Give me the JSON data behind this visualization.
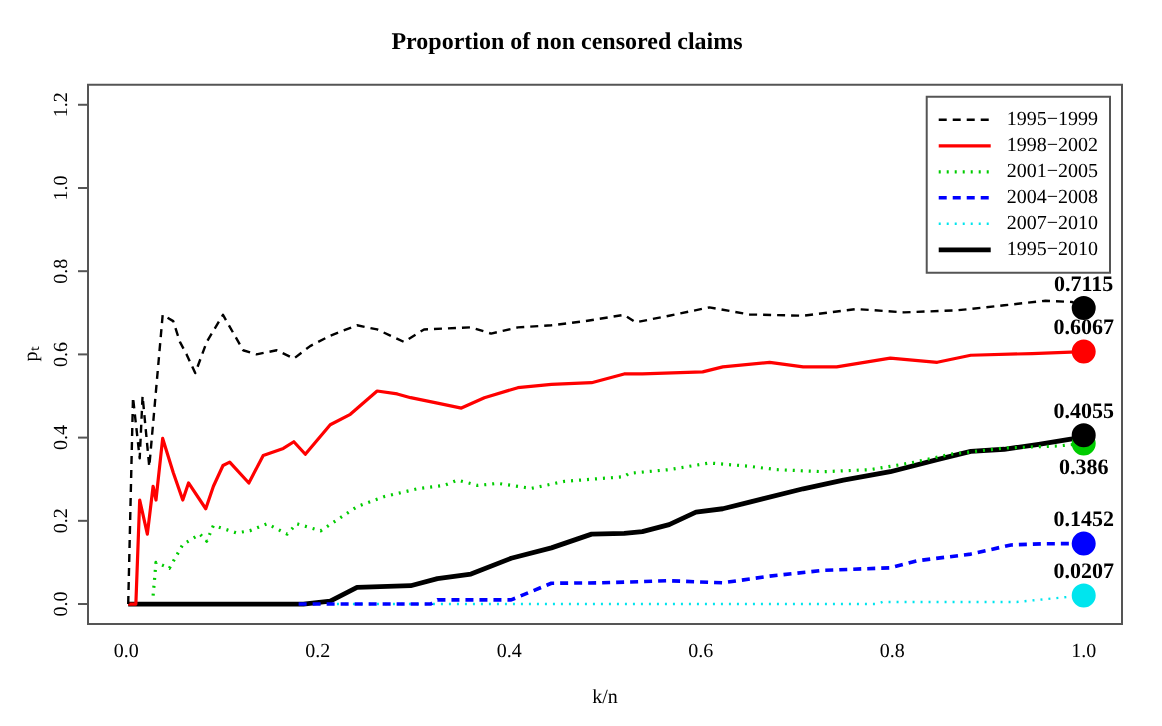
{
  "chart_data": {
    "type": "line",
    "title": "Proportion of non censored claims",
    "xlabel": "k/n",
    "ylabel": "pₜ",
    "xlim": [
      -0.04,
      1.04
    ],
    "ylim": [
      -0.048,
      1.248
    ],
    "xticks": [
      {
        "value": 0,
        "label": "0.0"
      },
      {
        "value": 0.2,
        "label": "0.2"
      },
      {
        "value": 0.4,
        "label": "0.4"
      },
      {
        "value": 0.6,
        "label": "0.6"
      },
      {
        "value": 0.8,
        "label": "0.8"
      },
      {
        "value": 1,
        "label": "1.0"
      }
    ],
    "yticks": [
      {
        "value": 0,
        "label": "0.0"
      },
      {
        "value": 0.2,
        "label": "0.2"
      },
      {
        "value": 0.4,
        "label": "0.4"
      },
      {
        "value": 0.6,
        "label": "0.6"
      },
      {
        "value": 0.8,
        "label": "0.8"
      },
      {
        "value": 1,
        "label": "1.0"
      },
      {
        "value": 1.2,
        "label": "1.2"
      }
    ],
    "grid": false,
    "legend": "top right",
    "marker": "none",
    "series": [
      {
        "name": "1995−1999",
        "color": "#000000",
        "line_style": "dashed",
        "x": [
          0.002,
          0.007,
          0.014,
          0.017,
          0.024,
          0.038,
          0.049,
          0.056,
          0.063,
          0.072,
          0.084,
          0.101,
          0.122,
          0.136,
          0.157,
          0.175,
          0.192,
          0.213,
          0.241,
          0.262,
          0.29,
          0.311,
          0.36,
          0.381,
          0.409,
          0.444,
          0.479,
          0.52,
          0.532,
          0.567,
          0.609,
          0.651,
          0.707,
          0.763,
          0.812,
          0.868,
          0.917,
          0.96,
          0.988,
          1.0
        ],
        "values": [
          0,
          0.497,
          0.35,
          0.5,
          0.33,
          0.695,
          0.68,
          0.63,
          0.6,
          0.555,
          0.63,
          0.695,
          0.61,
          0.6,
          0.61,
          0.59,
          0.62,
          0.645,
          0.67,
          0.66,
          0.63,
          0.66,
          0.665,
          0.65,
          0.665,
          0.67,
          0.68,
          0.695,
          0.677,
          0.693,
          0.713,
          0.696,
          0.693,
          0.709,
          0.701,
          0.706,
          0.718,
          0.729,
          0.726,
          0.7115
        ]
      },
      {
        "name": "1998−2002",
        "color": "#ff0000",
        "line_style": "solid",
        "x": [
          0.002,
          0.01,
          0.014,
          0.022,
          0.028,
          0.031,
          0.038,
          0.049,
          0.059,
          0.065,
          0.083,
          0.091,
          0.101,
          0.108,
          0.128,
          0.143,
          0.164,
          0.175,
          0.187,
          0.213,
          0.234,
          0.262,
          0.283,
          0.297,
          0.325,
          0.35,
          0.374,
          0.409,
          0.444,
          0.486,
          0.52,
          0.539,
          0.602,
          0.623,
          0.672,
          0.707,
          0.742,
          0.798,
          0.847,
          0.882,
          0.946,
          1.0
        ],
        "values": [
          0,
          0,
          0.25,
          0.168,
          0.283,
          0.25,
          0.398,
          0.316,
          0.25,
          0.291,
          0.229,
          0.283,
          0.333,
          0.341,
          0.291,
          0.357,
          0.374,
          0.39,
          0.36,
          0.431,
          0.456,
          0.512,
          0.505,
          0.496,
          0.483,
          0.471,
          0.496,
          0.52,
          0.528,
          0.532,
          0.553,
          0.553,
          0.558,
          0.57,
          0.581,
          0.57,
          0.57,
          0.591,
          0.581,
          0.598,
          0.602,
          0.6067
        ]
      },
      {
        "name": "2001−2005",
        "color": "#00cc00",
        "line_style": "dotted",
        "x": [
          0.028,
          0.031,
          0.045,
          0.059,
          0.077,
          0.084,
          0.091,
          0.115,
          0.129,
          0.147,
          0.168,
          0.178,
          0.203,
          0.241,
          0.269,
          0.304,
          0.332,
          0.346,
          0.367,
          0.388,
          0.423,
          0.458,
          0.52,
          0.525,
          0.567,
          0.609,
          0.651,
          0.679,
          0.728,
          0.777,
          0.819,
          0.861,
          0.917,
          0.974,
          1.0
        ],
        "values": [
          0.02,
          0.1,
          0.086,
          0.143,
          0.168,
          0.151,
          0.189,
          0.171,
          0.176,
          0.193,
          0.168,
          0.193,
          0.176,
          0.234,
          0.258,
          0.277,
          0.285,
          0.298,
          0.285,
          0.29,
          0.278,
          0.295,
          0.306,
          0.314,
          0.323,
          0.339,
          0.331,
          0.323,
          0.318,
          0.323,
          0.339,
          0.36,
          0.375,
          0.38,
          0.386
        ]
      },
      {
        "name": "2004−2008",
        "color": "#0000ff",
        "line_style": "dashed",
        "x": [
          0.18,
          0.318,
          0.325,
          0.402,
          0.444,
          0.497,
          0.567,
          0.623,
          0.672,
          0.728,
          0.798,
          0.826,
          0.882,
          0.924,
          0.96,
          1.0
        ],
        "values": [
          0,
          0,
          0.01,
          0.01,
          0.05,
          0.051,
          0.056,
          0.051,
          0.067,
          0.081,
          0.087,
          0.104,
          0.12,
          0.142,
          0.145,
          0.1452
        ]
      },
      {
        "name": "2007−2010",
        "color": "#00e5ee",
        "line_style": "dotted",
        "x": [
          0.22,
          0.784,
          0.79,
          0.93,
          1.0
        ],
        "values": [
          0,
          0,
          0.005,
          0.005,
          0.0207
        ]
      },
      {
        "name": "1995−2010",
        "color": "#000000",
        "line_style": "solid",
        "x": [
          0.002,
          0.185,
          0.213,
          0.241,
          0.297,
          0.325,
          0.36,
          0.402,
          0.444,
          0.486,
          0.52,
          0.539,
          0.567,
          0.595,
          0.623,
          0.651,
          0.707,
          0.749,
          0.798,
          0.847,
          0.882,
          0.917,
          0.953,
          0.988,
          1.0
        ],
        "values": [
          0,
          0,
          0.007,
          0.04,
          0.044,
          0.061,
          0.072,
          0.11,
          0.135,
          0.168,
          0.17,
          0.174,
          0.191,
          0.221,
          0.229,
          0.245,
          0.277,
          0.298,
          0.318,
          0.347,
          0.367,
          0.372,
          0.384,
          0.397,
          0.4055
        ]
      },
      {
        "type": "scatter",
        "marker": "circle",
        "x": [
          1,
          1,
          1,
          1,
          1,
          1
        ],
        "values": [
          0.7115,
          0.6067,
          0.386,
          0.1452,
          0.0207,
          0.4055
        ],
        "colors": [
          "#000000",
          "#ff0000",
          "#00cc00",
          "#0000ff",
          "#00e5ee",
          "#000000"
        ],
        "value_labels": [
          "0.7115",
          "0.6067",
          "0.386",
          "0.1452",
          "0.0207",
          "0.4055"
        ]
      }
    ]
  }
}
